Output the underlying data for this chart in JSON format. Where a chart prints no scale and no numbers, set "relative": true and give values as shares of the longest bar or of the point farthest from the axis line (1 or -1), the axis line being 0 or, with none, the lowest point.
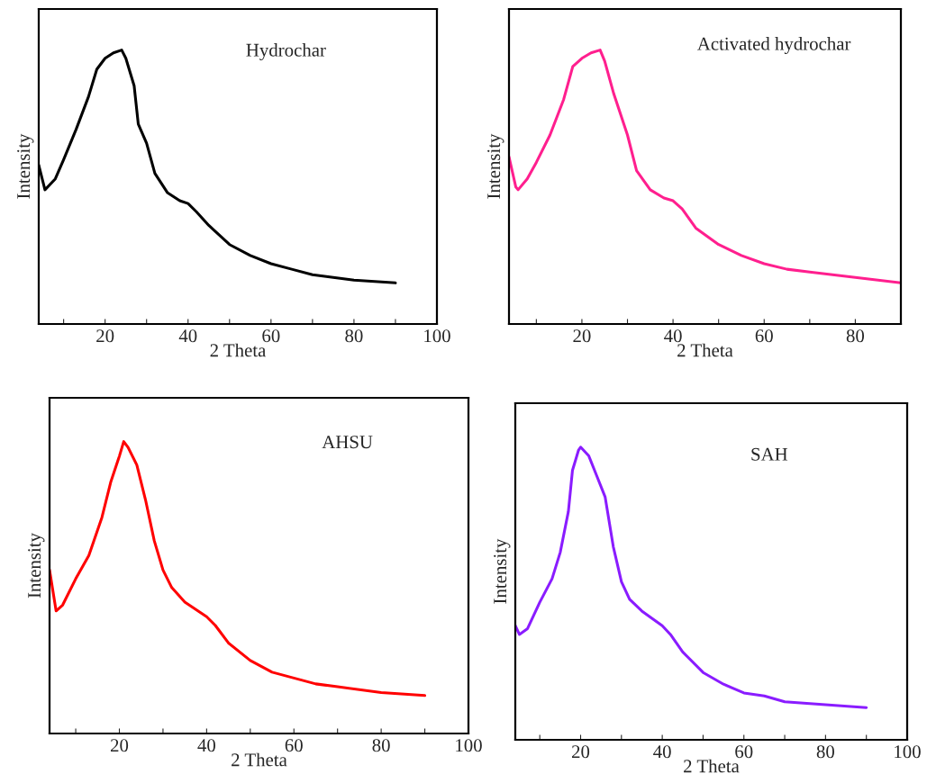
{
  "chart_data": [
    {
      "type": "line",
      "xlabel": "2 Theta",
      "ylabel": "Intensity",
      "relative": true,
      "annotations": [
        "Hydrochar"
      ],
      "xlim": [
        4,
        100
      ],
      "xticks": [
        {
          "value": 10,
          "label": null
        },
        20,
        {
          "value": 30,
          "label": null
        },
        40,
        {
          "value": 50,
          "label": null
        },
        60,
        {
          "value": 70,
          "label": null
        },
        80,
        {
          "value": 90,
          "label": null
        },
        100
      ],
      "grid": false,
      "legend": false,
      "x": [
        4,
        5.5,
        8,
        10,
        13,
        16,
        18,
        20,
        22,
        24,
        25,
        27,
        28,
        30,
        32,
        35,
        38,
        40,
        42,
        45,
        50,
        55,
        60,
        65,
        70,
        80,
        90
      ],
      "series": [
        {
          "color": "#000000",
          "values": [
            0.58,
            0.49,
            0.53,
            0.6,
            0.71,
            0.83,
            0.93,
            0.97,
            0.99,
            1.0,
            0.97,
            0.87,
            0.73,
            0.66,
            0.55,
            0.48,
            0.45,
            0.44,
            0.41,
            0.36,
            0.29,
            0.25,
            0.22,
            0.2,
            0.18,
            0.16,
            0.15
          ]
        }
      ]
    },
    {
      "type": "line",
      "xlabel": "2 Theta",
      "ylabel": "Intensity",
      "relative": true,
      "annotations": [
        "Activated hydrochar"
      ],
      "xlim": [
        4,
        90
      ],
      "xticks": [
        {
          "value": 10,
          "label": null
        },
        20,
        {
          "value": 30,
          "label": null
        },
        40,
        {
          "value": 50,
          "label": null
        },
        60,
        {
          "value": 70,
          "label": null
        },
        80
      ],
      "grid": false,
      "legend": false,
      "x": [
        4,
        5.5,
        6,
        8,
        10,
        13,
        16,
        18,
        20,
        22,
        24,
        25,
        27,
        30,
        32,
        35,
        38,
        40,
        42,
        45,
        50,
        55,
        60,
        65,
        70,
        80,
        90
      ],
      "series": [
        {
          "color": "#ff1f8e",
          "values": [
            0.61,
            0.5,
            0.49,
            0.53,
            0.59,
            0.69,
            0.82,
            0.94,
            0.97,
            0.99,
            1.0,
            0.96,
            0.84,
            0.69,
            0.56,
            0.49,
            0.46,
            0.45,
            0.42,
            0.35,
            0.29,
            0.25,
            0.22,
            0.2,
            0.19,
            0.17,
            0.15
          ]
        }
      ]
    },
    {
      "type": "line",
      "xlabel": "2 Theta",
      "ylabel": "Intensity",
      "relative": true,
      "annotations": [
        "AHSU"
      ],
      "xlim": [
        4,
        100
      ],
      "xticks": [
        {
          "value": 10,
          "label": null
        },
        20,
        {
          "value": 30,
          "label": null
        },
        40,
        {
          "value": 50,
          "label": null
        },
        60,
        {
          "value": 70,
          "label": null
        },
        80,
        {
          "value": 90,
          "label": null
        },
        100
      ],
      "grid": false,
      "legend": false,
      "x": [
        4,
        5.5,
        7,
        10,
        13,
        16,
        18,
        20,
        21,
        22,
        24,
        26,
        28,
        30,
        32,
        35,
        38,
        40,
        42,
        45,
        50,
        55,
        60,
        65,
        70,
        80,
        90
      ],
      "series": [
        {
          "color": "#ff0000",
          "values": [
            0.56,
            0.42,
            0.44,
            0.53,
            0.61,
            0.74,
            0.86,
            0.95,
            1.0,
            0.98,
            0.92,
            0.8,
            0.66,
            0.56,
            0.5,
            0.45,
            0.42,
            0.4,
            0.37,
            0.31,
            0.25,
            0.21,
            0.19,
            0.17,
            0.16,
            0.14,
            0.13
          ]
        }
      ]
    },
    {
      "type": "line",
      "xlabel": "2 Theta",
      "ylabel": "Intensity",
      "relative": true,
      "annotations": [
        "SAH"
      ],
      "xlim": [
        4,
        100
      ],
      "xticks": [
        {
          "value": 10,
          "label": null
        },
        20,
        {
          "value": 30,
          "label": null
        },
        40,
        {
          "value": 50,
          "label": null
        },
        60,
        {
          "value": 70,
          "label": null
        },
        80,
        {
          "value": 90,
          "label": null
        },
        100
      ],
      "grid": false,
      "legend": false,
      "x": [
        4,
        5,
        7,
        10,
        13,
        15,
        17,
        18,
        19.5,
        20,
        22,
        24,
        26,
        28,
        30,
        32,
        35,
        38,
        40,
        42,
        45,
        50,
        55,
        60,
        65,
        70,
        80,
        90
      ],
      "series": [
        {
          "color": "#8a1cff",
          "values": [
            0.39,
            0.36,
            0.38,
            0.47,
            0.55,
            0.64,
            0.78,
            0.92,
            0.99,
            1.0,
            0.97,
            0.9,
            0.83,
            0.66,
            0.54,
            0.48,
            0.44,
            0.41,
            0.39,
            0.36,
            0.3,
            0.23,
            0.19,
            0.16,
            0.15,
            0.13,
            0.12,
            0.11
          ]
        }
      ]
    }
  ]
}
